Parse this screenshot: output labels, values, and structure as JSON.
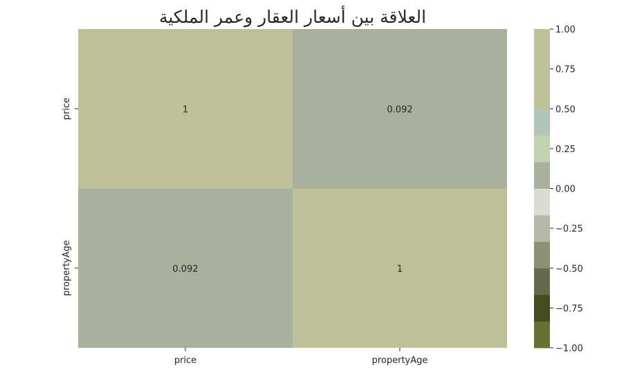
{
  "chart_data": {
    "type": "heatmap",
    "title": "العلاقة بين أسعار العقار وعمر الملكية",
    "xlabel": "",
    "ylabel": "",
    "x_categories": [
      "price",
      "propertyAge"
    ],
    "y_categories": [
      "price",
      "propertyAge"
    ],
    "values": [
      [
        1,
        0.092
      ],
      [
        0.092,
        1
      ]
    ],
    "annotations": [
      [
        "1",
        "0.092"
      ],
      [
        "0.092",
        "1"
      ]
    ],
    "colorbar": {
      "range": [
        -1,
        1
      ],
      "ticks": [
        "−1.00",
        "−0.75",
        "−0.50",
        "−0.25",
        "0.00",
        "0.25",
        "0.50",
        "0.75",
        "1.00"
      ],
      "tick_values": [
        -1,
        -0.75,
        -0.5,
        -0.25,
        0,
        0.25,
        0.5,
        0.75,
        1
      ],
      "colors": [
        "#667132",
        "#424c1f",
        "#646a4c",
        "#8a9073",
        "#b4b8a6",
        "#dadbd3",
        "#aab09e",
        "#c2d1b1",
        "#b1c6b6",
        "#bfbf98",
        "#bfbf98",
        "#bfbf98"
      ]
    }
  }
}
